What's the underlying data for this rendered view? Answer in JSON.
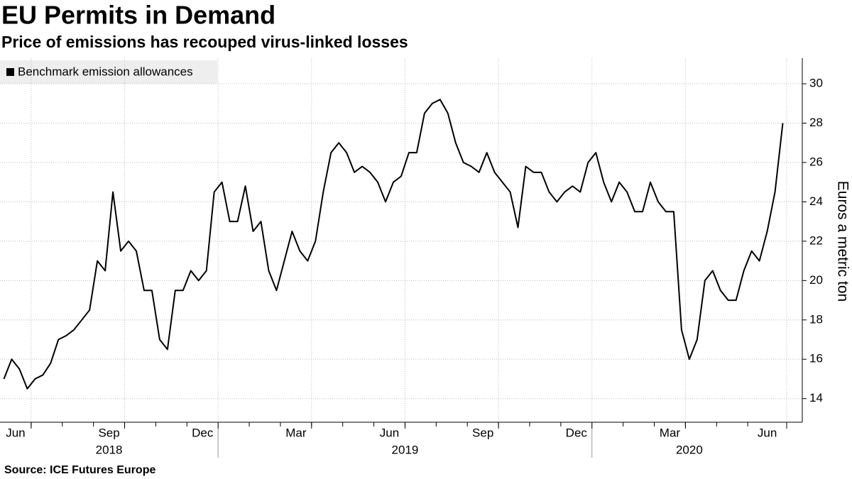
{
  "chart_data": {
    "type": "line",
    "title": "EU Permits in Demand",
    "subtitle": "Price of emissions has recouped virus-linked losses",
    "source": "Source: ICE Futures Europe",
    "y_label": "Euros a metric ton",
    "x": [
      "2018-06",
      "2018-06",
      "2018-06",
      "2018-06",
      "2018-07",
      "2018-07",
      "2018-07",
      "2018-07",
      "2018-08",
      "2018-08",
      "2018-08",
      "2018-08",
      "2018-09",
      "2018-09",
      "2018-09",
      "2018-09",
      "2018-10",
      "2018-10",
      "2018-10",
      "2018-10",
      "2018-11",
      "2018-11",
      "2018-11",
      "2018-11",
      "2018-12",
      "2018-12",
      "2018-12",
      "2018-12",
      "2019-01",
      "2019-01",
      "2019-01",
      "2019-01",
      "2019-02",
      "2019-02",
      "2019-02",
      "2019-02",
      "2019-03",
      "2019-03",
      "2019-03",
      "2019-03",
      "2019-04",
      "2019-04",
      "2019-04",
      "2019-04",
      "2019-05",
      "2019-05",
      "2019-05",
      "2019-05",
      "2019-06",
      "2019-06",
      "2019-06",
      "2019-06",
      "2019-07",
      "2019-07",
      "2019-07",
      "2019-07",
      "2019-08",
      "2019-08",
      "2019-08",
      "2019-08",
      "2019-09",
      "2019-09",
      "2019-09",
      "2019-09",
      "2019-10",
      "2019-10",
      "2019-10",
      "2019-10",
      "2019-11",
      "2019-11",
      "2019-11",
      "2019-11",
      "2019-12",
      "2019-12",
      "2019-12",
      "2019-12",
      "2020-01",
      "2020-01",
      "2020-01",
      "2020-01",
      "2020-02",
      "2020-02",
      "2020-02",
      "2020-02",
      "2020-03",
      "2020-03",
      "2020-03",
      "2020-03",
      "2020-04",
      "2020-04",
      "2020-04",
      "2020-04",
      "2020-05",
      "2020-05",
      "2020-05",
      "2020-05",
      "2020-06",
      "2020-06",
      "2020-06",
      "2020-06",
      "2020-06"
    ],
    "series": [
      {
        "name": "Benchmark emission allowances",
        "color": "#000000",
        "values": [
          15.0,
          16.0,
          15.5,
          14.5,
          15.0,
          15.2,
          15.8,
          17.0,
          17.2,
          17.5,
          18.0,
          18.5,
          21.0,
          20.5,
          24.5,
          21.5,
          22.0,
          21.5,
          19.5,
          19.5,
          17.0,
          16.5,
          19.5,
          19.5,
          20.5,
          20.0,
          20.5,
          24.5,
          25.0,
          23.0,
          23.0,
          24.8,
          22.5,
          23.0,
          20.5,
          19.5,
          21.0,
          22.5,
          21.5,
          21.0,
          22.0,
          24.5,
          26.5,
          27.0,
          26.5,
          25.5,
          25.8,
          25.5,
          25.0,
          24.0,
          25.0,
          25.3,
          26.5,
          26.5,
          28.5,
          29.0,
          29.2,
          28.5,
          27.0,
          26.0,
          25.8,
          25.5,
          26.5,
          25.5,
          25.0,
          24.5,
          22.7,
          25.8,
          25.5,
          25.5,
          24.5,
          24.0,
          24.5,
          24.8,
          24.5,
          26.0,
          26.5,
          25.0,
          24.0,
          25.0,
          24.5,
          23.5,
          23.5,
          25.0,
          24.0,
          23.5,
          23.5,
          17.5,
          16.0,
          17.0,
          20.0,
          20.5,
          19.5,
          19.0,
          19.0,
          20.5,
          21.5,
          21.0,
          22.5,
          24.5,
          28.0
        ]
      }
    ],
    "xticks": [
      {
        "value": "2018-06",
        "label": "Jun"
      },
      {
        "value": "2018-09",
        "label": "Sep"
      },
      {
        "value": "2018-12",
        "label": "Dec"
      },
      {
        "value": "2019-03",
        "label": "Mar"
      },
      {
        "value": "2019-06",
        "label": "Jun"
      },
      {
        "value": "2019-09",
        "label": "Sep"
      },
      {
        "value": "2019-12",
        "label": "Dec"
      },
      {
        "value": "2020-03",
        "label": "Mar"
      },
      {
        "value": "2020-06",
        "label": "Jun"
      }
    ],
    "xgroups": [
      "2018",
      "2019",
      "2020"
    ],
    "ylim": [
      12.8,
      31.3
    ],
    "yticks": [
      14,
      16,
      18,
      20,
      22,
      24,
      26,
      28,
      30
    ],
    "grid": true
  }
}
